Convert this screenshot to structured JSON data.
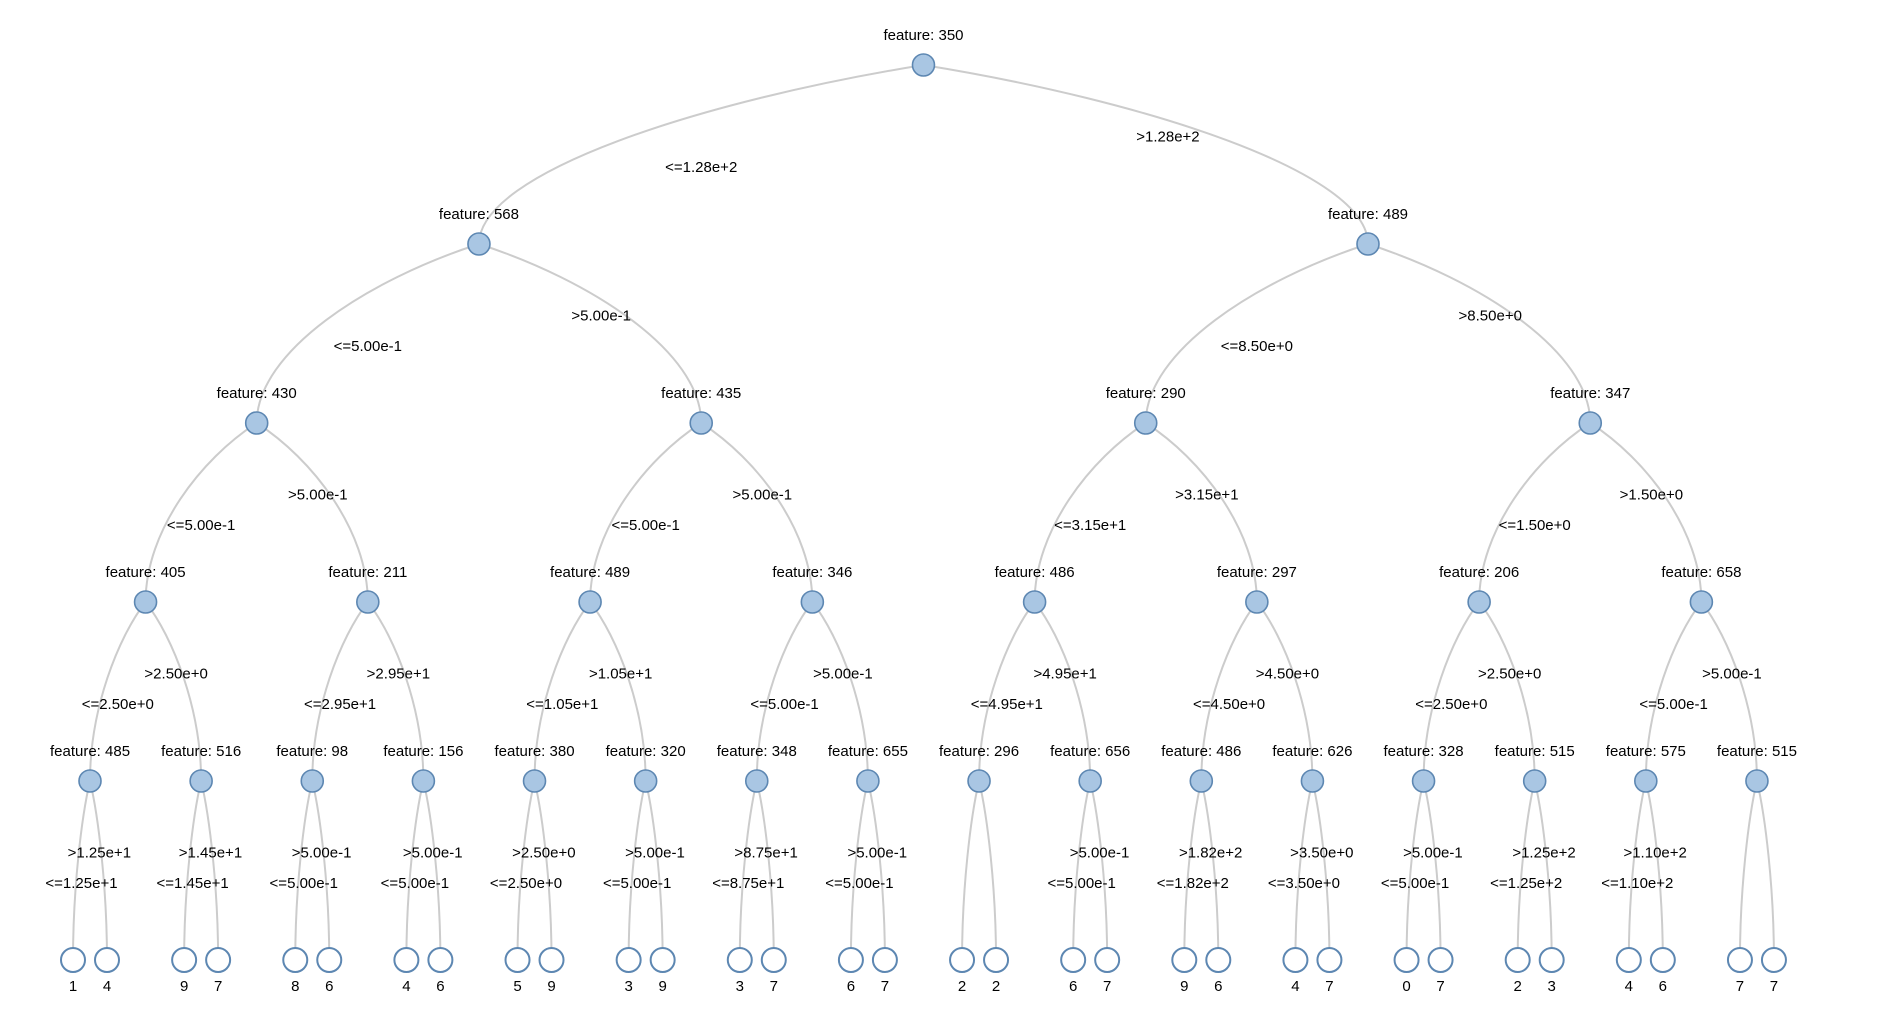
{
  "diagram": {
    "type": "decision-tree",
    "background": "#ffffff",
    "colors": {
      "node_fill": "#a9c6e3",
      "node_stroke": "#5d87b2",
      "leaf_fill": "#ffffff",
      "edge": "#cccccc",
      "text": "#000000"
    },
    "tree": {
      "label": "feature: 350",
      "edge_left": "<=1.28e+2",
      "edge_right": ">1.28e+2",
      "left": {
        "label": "feature: 568",
        "edge_left": "<=5.00e-1",
        "edge_right": ">5.00e-1",
        "left": {
          "label": "feature: 430",
          "edge_left": "<=5.00e-1",
          "edge_right": ">5.00e-1",
          "left": {
            "label": "feature: 405",
            "edge_left": "<=2.50e+0",
            "edge_right": ">2.50e+0",
            "left": {
              "label": "feature: 485",
              "edge_left": "<=1.25e+1",
              "edge_right": ">1.25e+1",
              "left": {
                "label": "1"
              },
              "right": {
                "label": "4"
              }
            },
            "right": {
              "label": "feature: 516",
              "edge_left": "<=1.45e+1",
              "edge_right": ">1.45e+1",
              "left": {
                "label": "9"
              },
              "right": {
                "label": "7"
              }
            }
          },
          "right": {
            "label": "feature: 211",
            "edge_left": "<=2.95e+1",
            "edge_right": ">2.95e+1",
            "left": {
              "label": "feature: 98",
              "edge_left": "<=5.00e-1",
              "edge_right": ">5.00e-1",
              "left": {
                "label": "8"
              },
              "right": {
                "label": "6"
              }
            },
            "right": {
              "label": "feature: 156",
              "edge_left": "<=5.00e-1",
              "edge_right": ">5.00e-1",
              "left": {
                "label": "4"
              },
              "right": {
                "label": "6"
              }
            }
          }
        },
        "right": {
          "label": "feature: 435",
          "edge_left": "<=5.00e-1",
          "edge_right": ">5.00e-1",
          "left": {
            "label": "feature: 489",
            "edge_left": "<=1.05e+1",
            "edge_right": ">1.05e+1",
            "left": {
              "label": "feature: 380",
              "edge_left": "<=2.50e+0",
              "edge_right": ">2.50e+0",
              "left": {
                "label": "5"
              },
              "right": {
                "label": "9"
              }
            },
            "right": {
              "label": "feature: 320",
              "edge_left": "<=5.00e-1",
              "edge_right": ">5.00e-1",
              "left": {
                "label": "3"
              },
              "right": {
                "label": "9"
              }
            }
          },
          "right": {
            "label": "feature: 346",
            "edge_left": "<=5.00e-1",
            "edge_right": ">5.00e-1",
            "left": {
              "label": "feature: 348",
              "edge_left": "<=8.75e+1",
              "edge_right": ">8.75e+1",
              "left": {
                "label": "3"
              },
              "right": {
                "label": "7"
              }
            },
            "right": {
              "label": "feature: 655",
              "edge_left": "<=5.00e-1",
              "edge_right": ">5.00e-1",
              "left": {
                "label": "6"
              },
              "right": {
                "label": "7"
              }
            }
          }
        }
      },
      "right": {
        "label": "feature: 489",
        "edge_left": "<=8.50e+0",
        "edge_right": ">8.50e+0",
        "left": {
          "label": "feature: 290",
          "edge_left": "<=3.15e+1",
          "edge_right": ">3.15e+1",
          "left": {
            "label": "feature: 486",
            "edge_left": "<=4.95e+1",
            "edge_right": ">4.95e+1",
            "left": {
              "label": "feature: 296",
              "edge_left": "",
              "edge_right": "",
              "left": {
                "label": "2"
              },
              "right": {
                "label": "2"
              }
            },
            "right": {
              "label": "feature: 656",
              "edge_left": "<=5.00e-1",
              "edge_right": ">5.00e-1",
              "left": {
                "label": "6"
              },
              "right": {
                "label": "7"
              }
            }
          },
          "right": {
            "label": "feature: 297",
            "edge_left": "<=4.50e+0",
            "edge_right": ">4.50e+0",
            "left": {
              "label": "feature: 486",
              "edge_left": "<=1.82e+2",
              "edge_right": ">1.82e+2",
              "left": {
                "label": "9"
              },
              "right": {
                "label": "6"
              }
            },
            "right": {
              "label": "feature: 626",
              "edge_left": "<=3.50e+0",
              "edge_right": ">3.50e+0",
              "left": {
                "label": "4"
              },
              "right": {
                "label": "7"
              }
            }
          }
        },
        "right": {
          "label": "feature: 347",
          "edge_left": "<=1.50e+0",
          "edge_right": ">1.50e+0",
          "left": {
            "label": "feature: 206",
            "edge_left": "<=2.50e+0",
            "edge_right": ">2.50e+0",
            "left": {
              "label": "feature: 328",
              "edge_left": "<=5.00e-1",
              "edge_right": ">5.00e-1",
              "left": {
                "label": "0"
              },
              "right": {
                "label": "7"
              }
            },
            "right": {
              "label": "feature: 515",
              "edge_left": "<=1.25e+2",
              "edge_right": ">1.25e+2",
              "left": {
                "label": "2"
              },
              "right": {
                "label": "3"
              }
            }
          },
          "right": {
            "label": "feature: 658",
            "edge_left": "<=5.00e-1",
            "edge_right": ">5.00e-1",
            "left": {
              "label": "feature: 575",
              "edge_left": "<=1.10e+2",
              "edge_right": ">1.10e+2",
              "left": {
                "label": "4"
              },
              "right": {
                "label": "6"
              }
            },
            "right": {
              "label": "feature: 515",
              "edge_left": "",
              "edge_right": "",
              "left": {
                "label": "7"
              },
              "right": {
                "label": "7"
              }
            }
          }
        }
      }
    }
  }
}
